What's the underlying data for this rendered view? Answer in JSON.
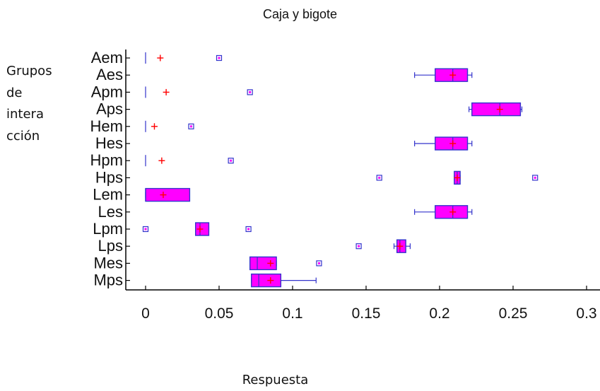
{
  "chart_data": {
    "type": "boxplot",
    "orientation": "horizontal",
    "title": "Caja y bigote",
    "ylabel_lines": [
      "Grupos",
      "de",
      "intera",
      "cción"
    ],
    "xlabel": "Respuesta",
    "xlim": [
      0,
      0.3
    ],
    "xticks": [
      0,
      0.05,
      0.1,
      0.15,
      0.2,
      0.25,
      0.3
    ],
    "xtick_labels": [
      "0",
      "0.05",
      "0.1",
      "0.15",
      "0.2",
      "0.25",
      "0.3"
    ],
    "colors": {
      "box_fill": "#ff00ff",
      "box_edge": "#3333cc",
      "mean_marker": "#ff0000"
    },
    "categories": [
      "Aem",
      "Aes",
      "Apm",
      "Aps",
      "Hem",
      "Hes",
      "Hpm",
      "Hps",
      "Lem",
      "Les",
      "Lpm",
      "Lps",
      "Mes",
      "Mps"
    ],
    "groups": [
      {
        "name": "Aem",
        "min": 0.0,
        "q1": 0.0,
        "median": 0.0,
        "q3": 0.0,
        "max": 0.0,
        "mean": 0.01,
        "outliers": [
          0.05
        ]
      },
      {
        "name": "Aes",
        "min": 0.183,
        "q1": 0.197,
        "median": 0.209,
        "q3": 0.219,
        "max": 0.222,
        "mean": 0.209,
        "outliers": []
      },
      {
        "name": "Apm",
        "min": 0.0,
        "q1": 0.0,
        "median": 0.0,
        "q3": 0.0,
        "max": 0.0,
        "mean": 0.014,
        "outliers": [
          0.071
        ]
      },
      {
        "name": "Aps",
        "min": 0.22,
        "q1": 0.222,
        "median": 0.241,
        "q3": 0.255,
        "max": 0.256,
        "mean": 0.241,
        "outliers": []
      },
      {
        "name": "Hem",
        "min": 0.0,
        "q1": 0.0,
        "median": 0.0,
        "q3": 0.0,
        "max": 0.0,
        "mean": 0.006,
        "outliers": [
          0.031
        ]
      },
      {
        "name": "Hes",
        "min": 0.183,
        "q1": 0.197,
        "median": 0.209,
        "q3": 0.219,
        "max": 0.222,
        "mean": 0.209,
        "outliers": []
      },
      {
        "name": "Hpm",
        "min": 0.0,
        "q1": 0.0,
        "median": 0.0,
        "q3": 0.0,
        "max": 0.0,
        "mean": 0.011,
        "outliers": [
          0.058
        ]
      },
      {
        "name": "Hps",
        "min": 0.21,
        "q1": 0.21,
        "median": 0.212,
        "q3": 0.214,
        "max": 0.214,
        "mean": 0.212,
        "outliers": [
          0.159,
          0.265
        ]
      },
      {
        "name": "Lem",
        "min": 0.0,
        "q1": 0.0,
        "median": 0.0,
        "q3": 0.03,
        "max": 0.03,
        "mean": 0.012,
        "outliers": []
      },
      {
        "name": "Les",
        "min": 0.183,
        "q1": 0.197,
        "median": 0.209,
        "q3": 0.219,
        "max": 0.222,
        "mean": 0.209,
        "outliers": []
      },
      {
        "name": "Lpm",
        "min": 0.034,
        "q1": 0.034,
        "median": 0.037,
        "q3": 0.043,
        "max": 0.043,
        "mean": 0.037,
        "outliers": [
          0.0,
          0.07
        ]
      },
      {
        "name": "Lps",
        "min": 0.169,
        "q1": 0.171,
        "median": 0.173,
        "q3": 0.177,
        "max": 0.18,
        "mean": 0.173,
        "outliers": [
          0.145
        ]
      },
      {
        "name": "Mes",
        "min": 0.071,
        "q1": 0.071,
        "median": 0.076,
        "q3": 0.089,
        "max": 0.089,
        "mean": 0.085,
        "outliers": [
          0.118
        ]
      },
      {
        "name": "Mps",
        "min": 0.072,
        "q1": 0.072,
        "median": 0.077,
        "q3": 0.092,
        "max": 0.116,
        "mean": 0.085,
        "outliers": []
      }
    ]
  }
}
